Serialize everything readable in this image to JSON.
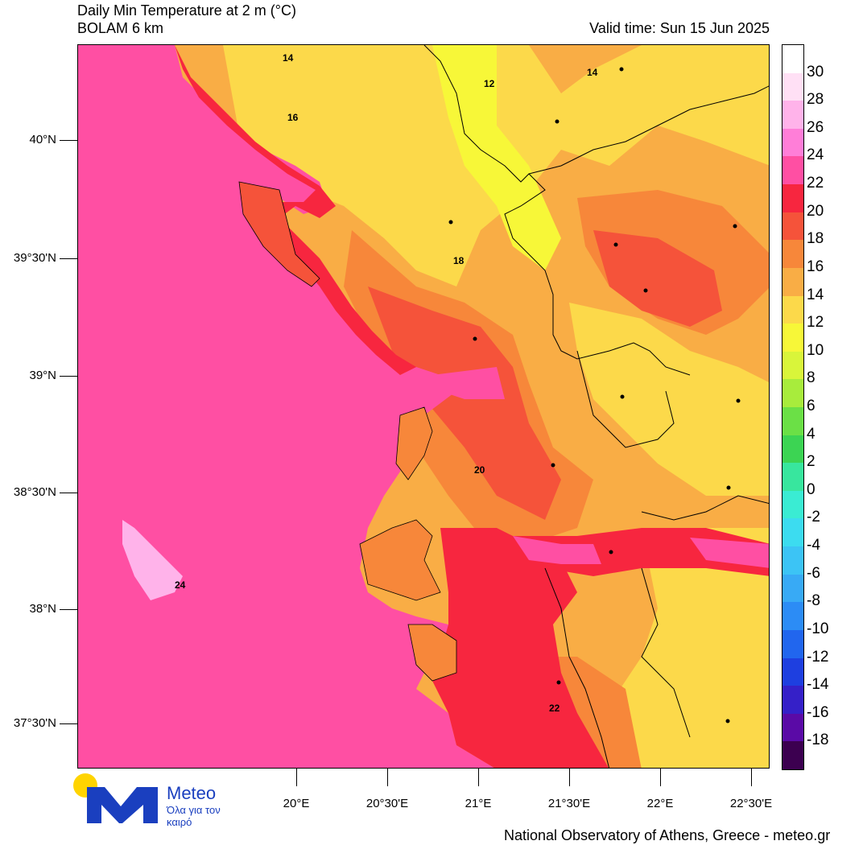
{
  "header": {
    "title": "Daily Min Temperature at 2 m (°C)",
    "model": "BOLAM 6 km",
    "valid_time": "Valid time: Sun 15 Jun 2025"
  },
  "axes": {
    "latitude_labels": [
      "40°N",
      "39°30'N",
      "39°N",
      "38°30'N",
      "38°N",
      "37°30'N"
    ],
    "longitude_labels": [
      "20°E",
      "20°30'E",
      "21°E",
      "21°30'E",
      "22°E",
      "22°30'E"
    ]
  },
  "colorbar": {
    "labels": [
      "30",
      "28",
      "26",
      "24",
      "22",
      "20",
      "18",
      "16",
      "14",
      "12",
      "10",
      "8",
      "6",
      "4",
      "2",
      "0",
      "-2",
      "-4",
      "-6",
      "-8",
      "-10",
      "-12",
      "-14",
      "-16",
      "-18"
    ],
    "colors": [
      "#ffffff",
      "#ffe0f5",
      "#ffb3ea",
      "#ff7ed8",
      "#ff4fa3",
      "#f7263f",
      "#f5533a",
      "#f7873a",
      "#f9ad45",
      "#fcd94a",
      "#f7f738",
      "#d9f53a",
      "#a8ec3c",
      "#6be046",
      "#3cd453",
      "#38e69e",
      "#3aecd3",
      "#3cdcf0",
      "#3cc4f5",
      "#38aaf5",
      "#2c8cf5",
      "#2166ee",
      "#1e3fe0",
      "#3520c8",
      "#5a0aa6",
      "#3c0050"
    ]
  },
  "map": {
    "contour_labels": [
      "14",
      "12",
      "14",
      "16",
      "18",
      "20",
      "22",
      "24"
    ],
    "colors": {
      "sea": "#ff4fa3",
      "sea_light": "#ff7ed8",
      "t12": "#fcd94a",
      "t14": "#f9ad45",
      "t16": "#f7873a",
      "t18": "#f5533a",
      "t20": "#f7263f",
      "t22": "#e8203a",
      "t24": "#ffb3ea"
    }
  },
  "logo": {
    "name": "Meteo",
    "tagline": "Όλα για τον καιρό"
  },
  "footer": "National Observatory of Athens, Greece - meteo.gr"
}
